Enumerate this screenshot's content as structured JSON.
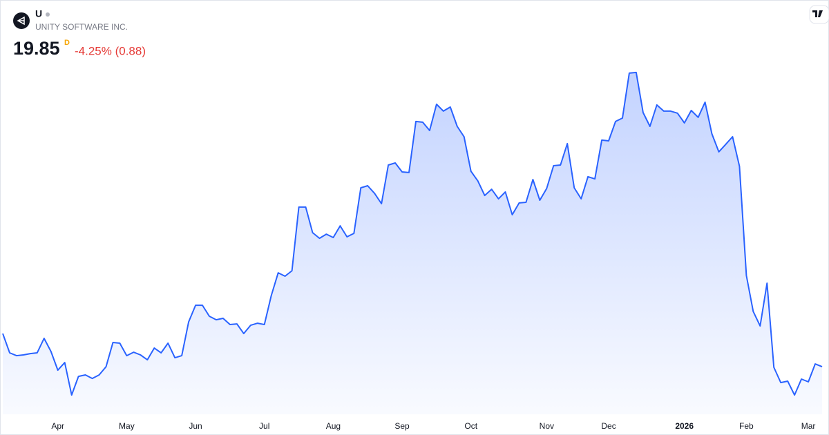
{
  "header": {
    "symbol": "U",
    "company": "UNITY SOFTWARE INC.",
    "price": 19.85,
    "interval": "D",
    "change": "-4.25% (0.88)"
  },
  "chart_data": {
    "type": "area",
    "color": "#2962ff",
    "categories": [
      null,
      null,
      null,
      null,
      null,
      null,
      null,
      null,
      "Apr",
      null,
      null,
      null,
      null,
      null,
      null,
      null,
      null,
      null,
      "May",
      null,
      null,
      null,
      null,
      null,
      null,
      null,
      null,
      null,
      "Jun",
      null,
      null,
      null,
      null,
      null,
      null,
      null,
      null,
      null,
      "Jul",
      null,
      null,
      null,
      null,
      null,
      null,
      null,
      null,
      null,
      "Aug",
      null,
      null,
      null,
      null,
      null,
      null,
      null,
      null,
      null,
      "Sep",
      null,
      null,
      null,
      null,
      null,
      null,
      null,
      null,
      null,
      "Oct",
      null,
      null,
      null,
      null,
      null,
      null,
      null,
      null,
      null,
      null,
      "Nov",
      null,
      null,
      null,
      null,
      null,
      null,
      null,
      null,
      "Dec",
      null,
      null,
      null,
      null,
      null,
      null,
      null,
      null,
      null,
      null,
      "2026",
      null,
      null,
      null,
      null,
      null,
      null,
      null,
      null,
      "Feb",
      null,
      null,
      null,
      null,
      null,
      null,
      null,
      null,
      "Mar",
      null,
      null
    ],
    "values": [
      22.89,
      21.12,
      20.86,
      20.93,
      21.05,
      21.12,
      22.45,
      21.24,
      19.53,
      20.23,
      17.25,
      18.96,
      19.09,
      18.77,
      19.09,
      19.85,
      22.07,
      22.01,
      20.86,
      21.18,
      20.93,
      20.48,
      21.56,
      21.12,
      22.01,
      20.67,
      20.86,
      23.97,
      25.49,
      25.49,
      24.48,
      24.16,
      24.29,
      23.72,
      23.78,
      22.89,
      23.65,
      23.84,
      23.72,
      26.38,
      28.47,
      28.16,
      28.66,
      34.5,
      34.5,
      32.15,
      31.64,
      32.02,
      31.71,
      32.78,
      31.77,
      32.09,
      36.27,
      36.46,
      35.76,
      34.81,
      38.36,
      38.55,
      37.73,
      37.67,
      42.36,
      42.29,
      41.53,
      43.94,
      43.31,
      43.69,
      41.91,
      40.96,
      37.79,
      36.9,
      35.57,
      36.14,
      35.26,
      35.89,
      33.8,
      34.88,
      34.94,
      37.03,
      35.13,
      36.21,
      38.3,
      38.36,
      40.33,
      36.27,
      35.26,
      37.29,
      37.09,
      40.65,
      40.58,
      42.36,
      42.67,
      46.8,
      46.86,
      43.18,
      41.91,
      43.88,
      43.31,
      43.31,
      43.12,
      42.23,
      43.37,
      42.74,
      44.13,
      41.22,
      39.57,
      40.26,
      40.96,
      38.24,
      28.22,
      24.92,
      23.59,
      27.52,
      19.79,
      18.39,
      18.52,
      17.25,
      18.71,
      18.46,
      20.1,
      19.85
    ],
    "ylim": [
      15.48,
      47.49
    ]
  }
}
